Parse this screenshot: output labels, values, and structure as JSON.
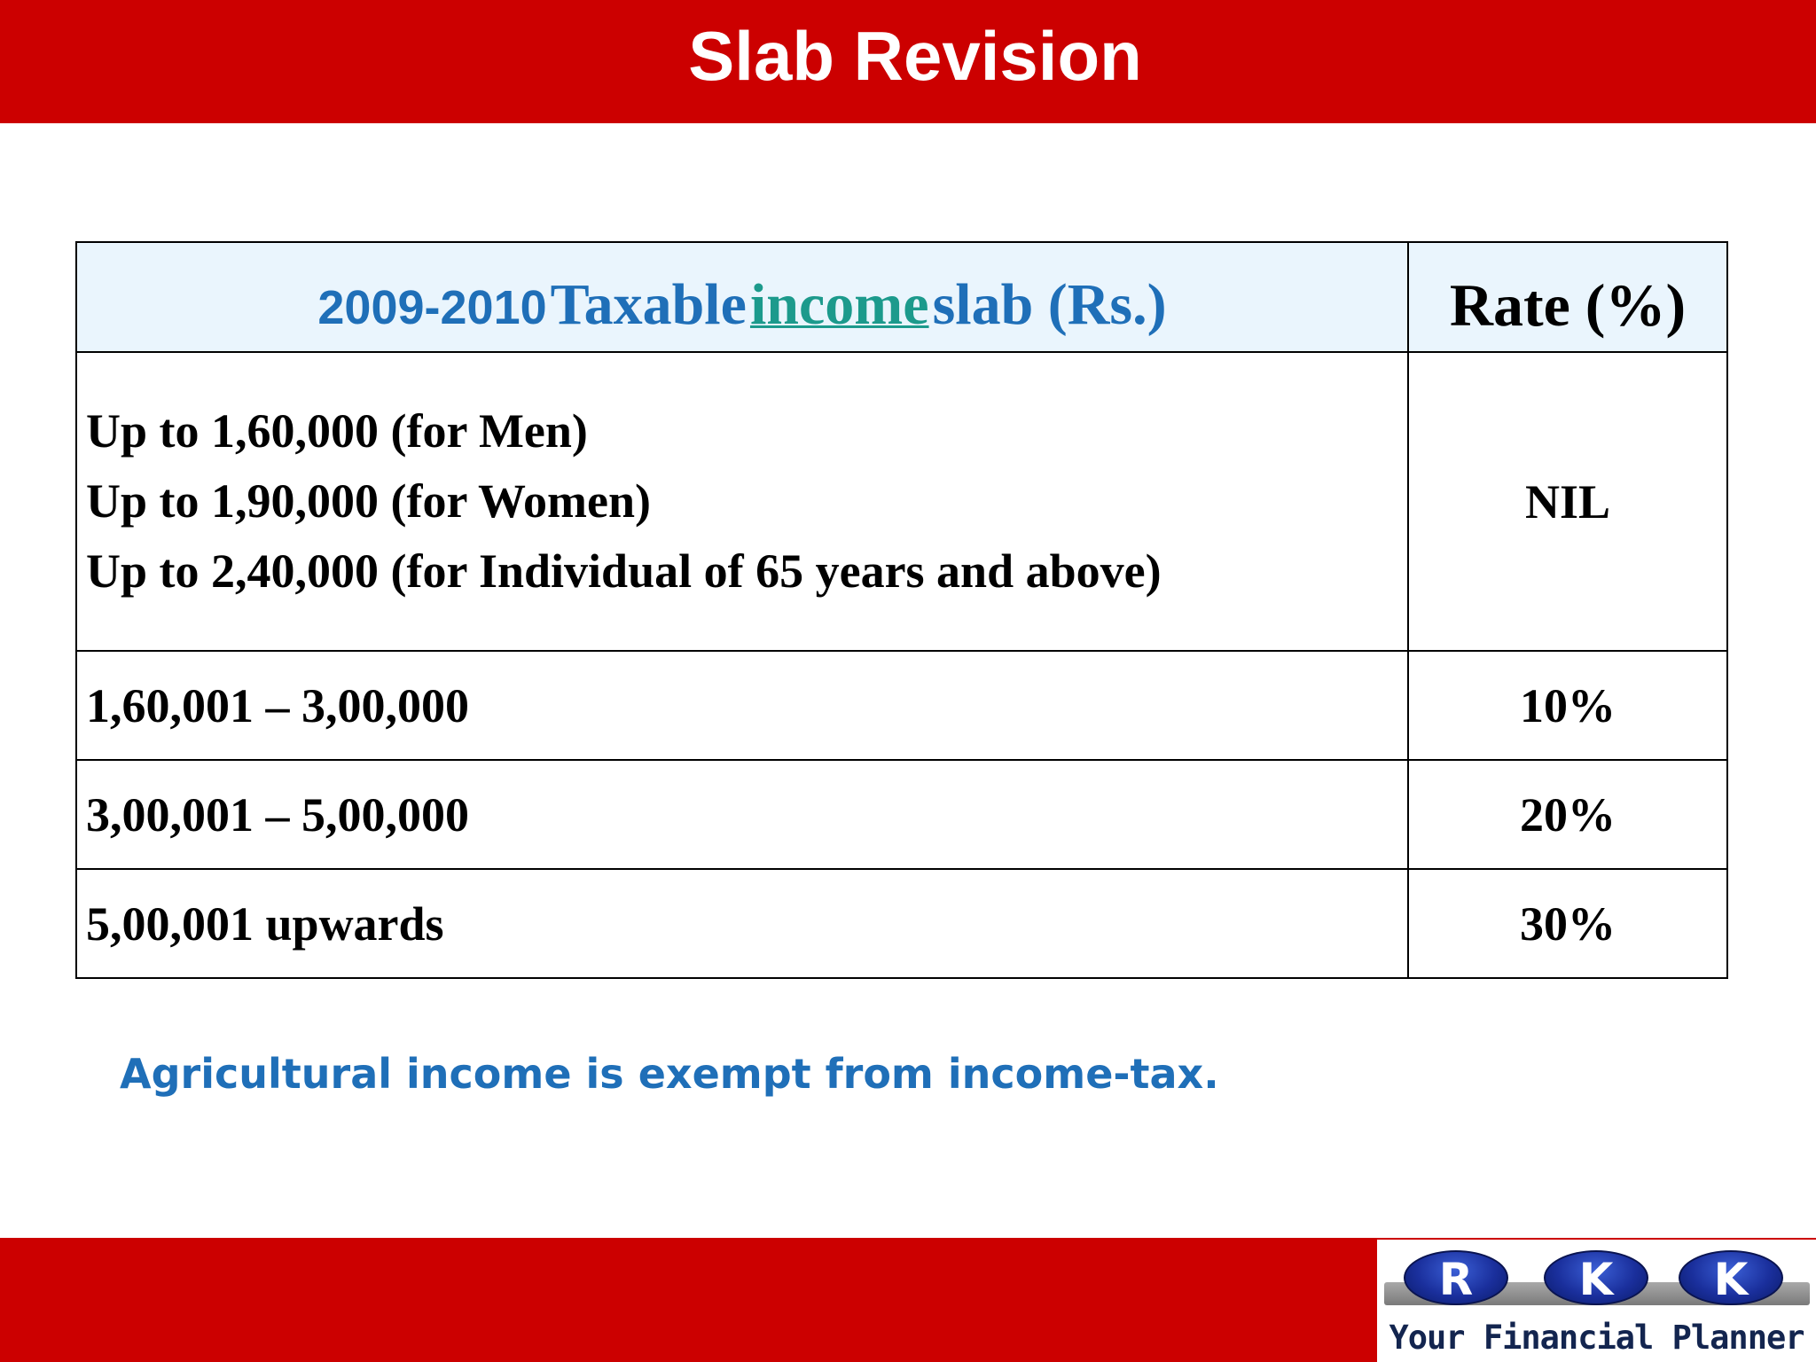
{
  "slide": {
    "title": "Slab Revision",
    "colors": {
      "banner": "#cc0000",
      "heading": "#1f6fb8",
      "link": "#1c9a8c",
      "header_fill": "#eaf5fd"
    }
  },
  "table": {
    "header": {
      "year": "2009-2010",
      "taxable": "Taxable",
      "income_link": "income",
      "rest": "slab (Rs.)",
      "rate": "Rate (%)"
    },
    "nil_row": {
      "lines": [
        "Up to 1,60,000  (for Men)",
        "Up to 1,90,000  (for Women)",
        "Up to 2,40,000  (for Individual of 65 years and above)"
      ],
      "rate": "NIL"
    },
    "rows": [
      {
        "slab": "1,60,001 – 3,00,000",
        "rate": "10%"
      },
      {
        "slab": "3,00,001 – 5,00,000",
        "rate": "20%"
      },
      {
        "slab": "5,00,001 upwards",
        "rate": "30%"
      }
    ]
  },
  "footnote": "Agricultural income is exempt from income-tax.",
  "logo": {
    "letters": [
      "R",
      "K",
      "K"
    ],
    "tagline": "Your Financial Planner"
  }
}
